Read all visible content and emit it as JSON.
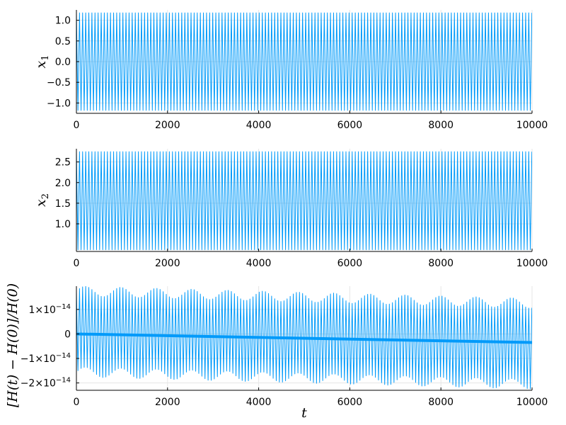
{
  "chart_data": [
    {
      "type": "line",
      "ylabel": "x",
      "ylabel_sub": "1",
      "xlim": [
        0,
        10000
      ],
      "ylim": [
        -1.25,
        1.25
      ],
      "xticks": [
        0,
        2000,
        4000,
        6000,
        8000,
        10000
      ],
      "xtick_labels": [
        "0",
        "2000",
        "4000",
        "6000",
        "8000",
        "10000"
      ],
      "yticks": [
        -1.0,
        -0.5,
        0.0,
        0.5,
        1.0
      ],
      "ytick_labels": [
        "−1.0",
        "−0.5",
        "0.0",
        "0.5",
        "1.0"
      ],
      "grid": true,
      "series": [
        {
          "color": "#009AFA",
          "line_width": 1,
          "style": "oscillation",
          "period": 68,
          "min": -1.18,
          "max": 1.18
        }
      ]
    },
    {
      "type": "line",
      "ylabel": "x",
      "ylabel_sub": "2",
      "xlim": [
        0,
        10000
      ],
      "ylim": [
        0.33,
        2.82
      ],
      "xticks": [
        0,
        2000,
        4000,
        6000,
        8000,
        10000
      ],
      "xtick_labels": [
        "0",
        "2000",
        "4000",
        "6000",
        "8000",
        "10000"
      ],
      "yticks": [
        1.0,
        1.5,
        2.0,
        2.5
      ],
      "ytick_labels": [
        "1.0",
        "1.5",
        "2.0",
        "2.5"
      ],
      "grid": true,
      "series": [
        {
          "color": "#009AFA",
          "line_width": 1,
          "style": "oscillation",
          "period": 68,
          "min": 0.37,
          "max": 2.75
        }
      ]
    },
    {
      "type": "line",
      "ylabel": "[H(t) − H(0)]/H(0)",
      "xlabel": "t",
      "xlim": [
        0,
        10000
      ],
      "ylim": [
        -2.3e-14,
        1.95e-14
      ],
      "xticks": [
        0,
        2000,
        4000,
        6000,
        8000,
        10000
      ],
      "xtick_labels": [
        "0",
        "2000",
        "4000",
        "6000",
        "8000",
        "10000"
      ],
      "yticks": [
        -2e-14,
        -1e-14,
        0,
        1e-14
      ],
      "ytick_labels": [
        {
          "mantissa": "−2×10",
          "exp": "−14"
        },
        {
          "mantissa": "−1×10",
          "exp": "−14"
        },
        {
          "mantissa": "0",
          "exp": ""
        },
        {
          "mantissa": "1×10",
          "exp": "−14"
        }
      ],
      "grid": true,
      "series": [
        {
          "color": "#009AFA",
          "line_width": 1,
          "style": "envelope-oscillation",
          "period": 68,
          "envelope_period": 780,
          "upper_start": 1.75e-14,
          "upper_end": 1.25e-14,
          "lower_start": -1.55e-14,
          "lower_end": -2.05e-14,
          "ripple": 2e-15
        },
        {
          "color": "#009AFA",
          "line_width": 4,
          "style": "trend",
          "x": [
            0,
            10000
          ],
          "y": [
            0.0,
            -3.5e-15
          ]
        }
      ]
    }
  ]
}
